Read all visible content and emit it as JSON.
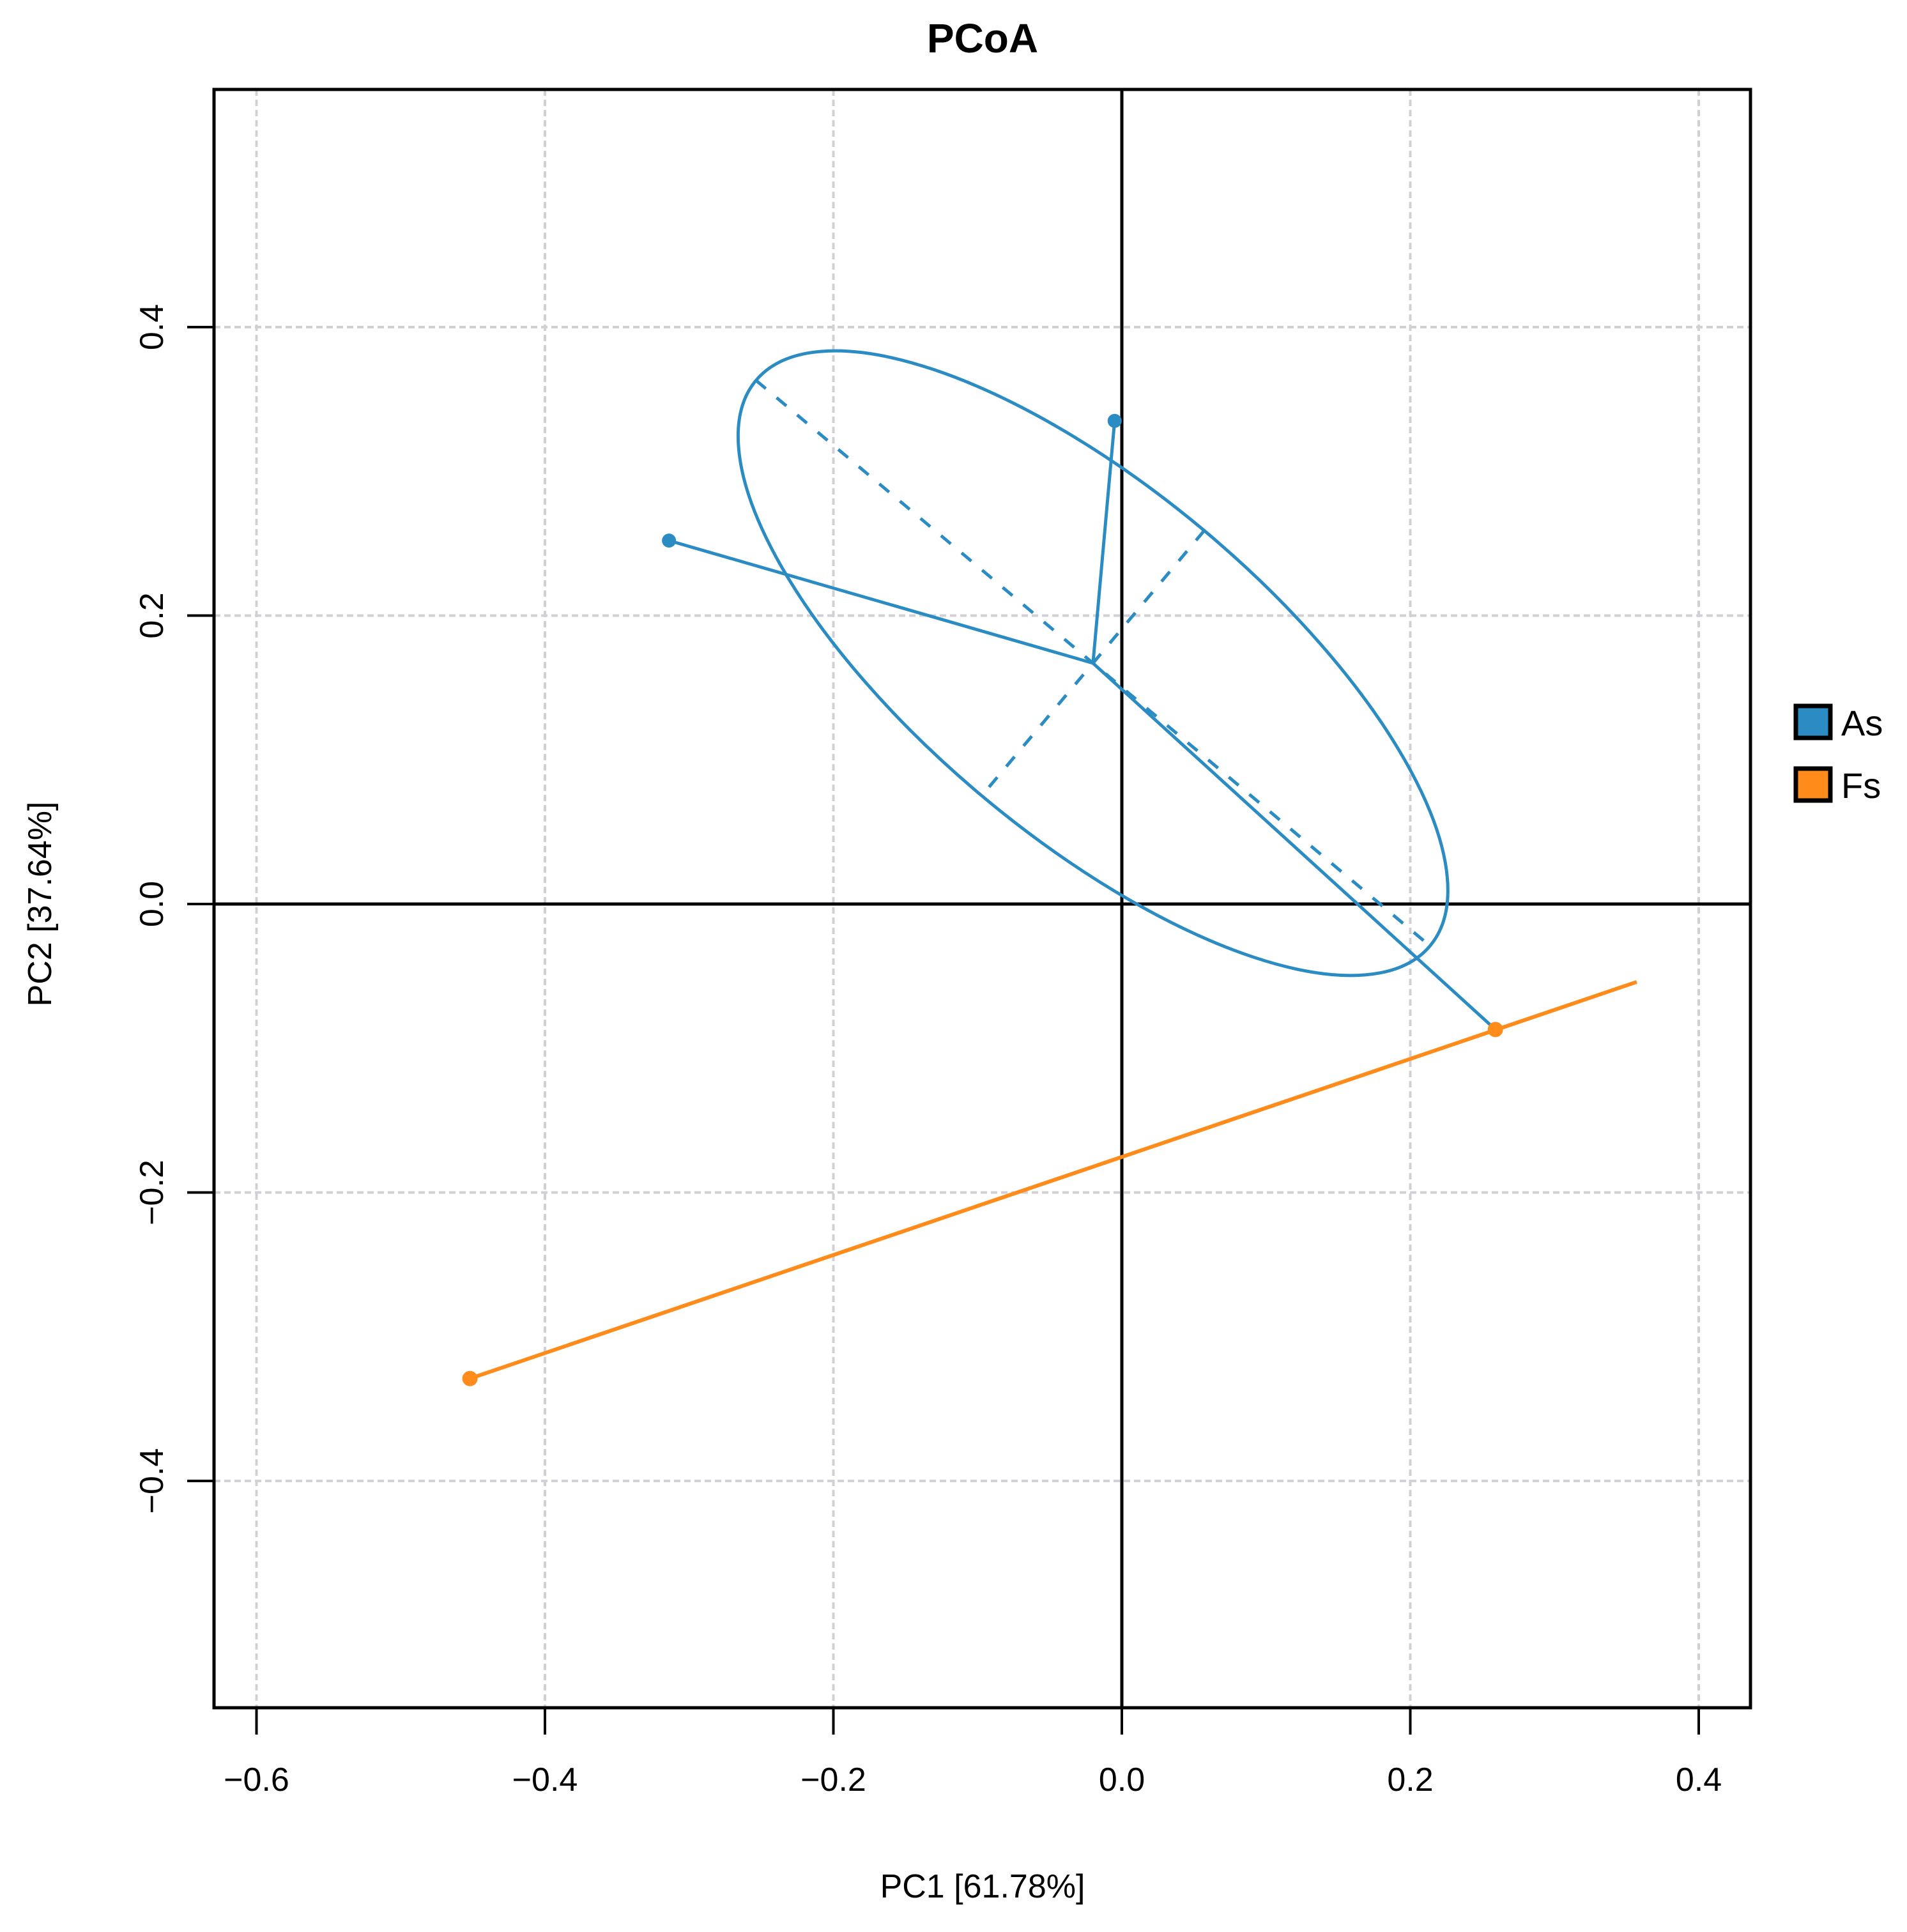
{
  "chart_data": {
    "type": "scatter",
    "title": "PCoA",
    "xlabel": "PC1  [61.78%]",
    "ylabel": "PC2  [37.64%]",
    "xlim": [
      -0.63,
      0.44
    ],
    "ylim": [
      -0.55,
      0.56
    ],
    "xticks": [
      -0.6,
      -0.4,
      -0.2,
      0.0,
      0.2,
      0.4
    ],
    "xtick_labels": [
      "−0.6",
      "−0.4",
      "−0.2",
      "0.0",
      "0.2",
      "0.4"
    ],
    "yticks": [
      -0.4,
      -0.2,
      0.0,
      0.2,
      0.4
    ],
    "ytick_labels": [
      "−0.4",
      "−0.2",
      "0.0",
      "0.2",
      "0.4"
    ],
    "grid": true,
    "reference_lines": {
      "x": 0.0,
      "y": 0.0
    },
    "legend_position": "right",
    "series": [
      {
        "name": "As",
        "color": "#2b8cc4",
        "points": [
          {
            "x": -0.314,
            "y": 0.252
          },
          {
            "x": -0.005,
            "y": 0.335
          },
          {
            "x": 0.259,
            "y": -0.087
          }
        ],
        "centroid": {
          "x": -0.02,
          "y": 0.167
        },
        "ellipse": {
          "center": {
            "x": -0.02,
            "y": 0.167
          },
          "semi_major": 0.305,
          "semi_minor": 0.12,
          "angle_deg": -40,
          "axes_dashed": true
        }
      },
      {
        "name": "Fs",
        "color": "#ff8c1a",
        "points": [
          {
            "x": 0.259,
            "y": -0.087
          },
          {
            "x": -0.452,
            "y": -0.329
          }
        ],
        "span_line": {
          "x1": -0.452,
          "y1": -0.329,
          "x2": 0.357,
          "y2": -0.054
        }
      }
    ]
  },
  "legend": {
    "items": [
      {
        "label": "As",
        "color": "#2b8cc4"
      },
      {
        "label": "Fs",
        "color": "#ff8c1a"
      }
    ]
  }
}
